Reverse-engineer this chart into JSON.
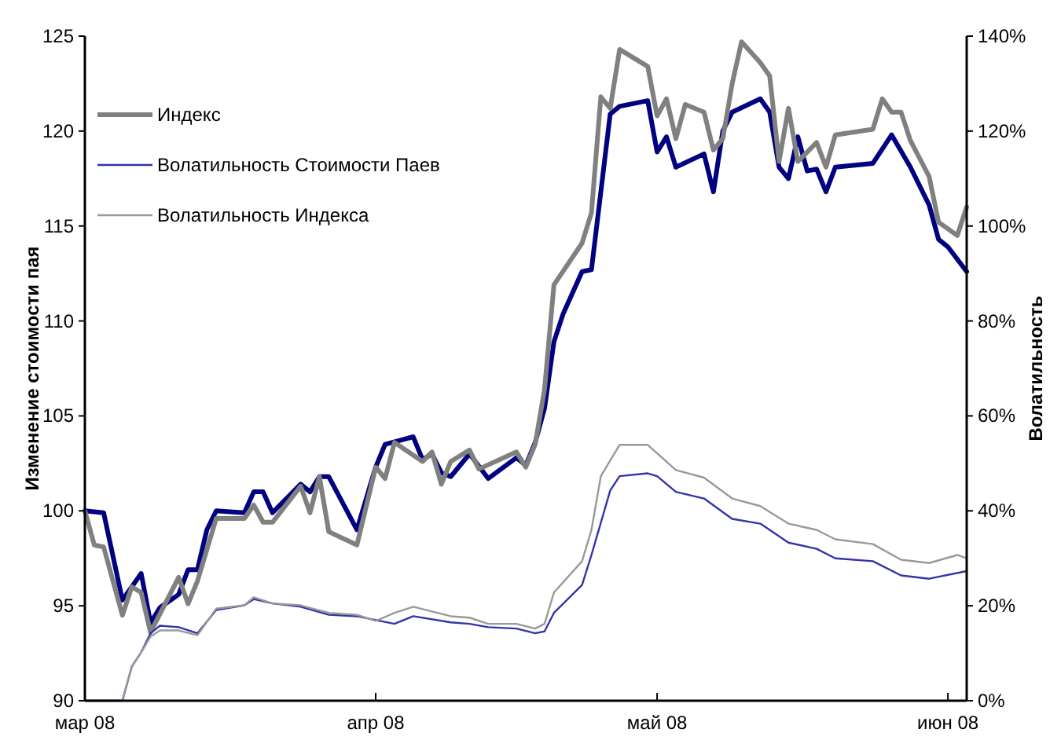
{
  "chart_data": {
    "type": "line",
    "ylabel": "Изменение стоимости пая",
    "y2label": "Волатильность",
    "xlim": [
      "2008-03-01",
      "2008-06-03"
    ],
    "xticks": [
      {
        "value": "2008-03-01",
        "label": "мар 08"
      },
      {
        "value": "2008-04-01",
        "label": "апр 08"
      },
      {
        "value": "2008-05-01",
        "label": "май 08"
      },
      {
        "value": "2008-06-01",
        "label": "июн 08"
      }
    ],
    "ylim": [
      90,
      125
    ],
    "yticks": [
      90,
      95,
      100,
      105,
      110,
      115,
      120,
      125
    ],
    "y2lim": [
      0,
      140
    ],
    "y2ticks": [
      {
        "value": 0,
        "label": "0%"
      },
      {
        "value": 20,
        "label": "20%"
      },
      {
        "value": 40,
        "label": "40%"
      },
      {
        "value": 60,
        "label": "60%"
      },
      {
        "value": 80,
        "label": "80%"
      },
      {
        "value": 100,
        "label": "100%"
      },
      {
        "value": 120,
        "label": "120%"
      },
      {
        "value": 140,
        "label": "140%"
      }
    ],
    "grid": false,
    "legend": "top left",
    "marker": "none",
    "line_style": "solid",
    "series": [
      {
        "color": "#000080",
        "x": [
          "2008-03-01",
          "2008-03-03",
          "2008-03-05",
          "2008-03-07",
          "2008-03-08",
          "2008-03-09",
          "2008-03-11",
          "2008-03-12",
          "2008-03-13",
          "2008-03-14",
          "2008-03-15",
          "2008-03-18",
          "2008-03-19",
          "2008-03-20",
          "2008-03-21",
          "2008-03-24",
          "2008-03-25",
          "2008-03-26",
          "2008-03-27",
          "2008-03-30",
          "2008-04-01",
          "2008-04-02",
          "2008-04-05",
          "2008-04-06",
          "2008-04-07",
          "2008-04-08",
          "2008-04-09",
          "2008-04-11",
          "2008-04-13",
          "2008-04-16",
          "2008-04-17",
          "2008-04-18",
          "2008-04-19",
          "2008-04-20",
          "2008-04-21",
          "2008-04-23",
          "2008-04-24",
          "2008-04-26",
          "2008-04-27",
          "2008-04-30",
          "2008-05-01",
          "2008-05-02",
          "2008-05-03",
          "2008-05-06",
          "2008-05-07",
          "2008-05-08",
          "2008-05-09",
          "2008-05-12",
          "2008-05-13",
          "2008-05-14",
          "2008-05-15",
          "2008-05-16",
          "2008-05-17",
          "2008-05-18",
          "2008-05-19",
          "2008-05-20",
          "2008-05-24",
          "2008-05-26",
          "2008-05-28",
          "2008-05-30",
          "2008-05-31",
          "2008-06-01",
          "2008-06-03"
        ],
        "values": [
          100.0,
          99.9,
          95.3,
          96.7,
          94.1,
          94.9,
          95.6,
          96.9,
          96.9,
          99.0,
          100.0,
          99.9,
          101.0,
          101.0,
          99.9,
          101.4,
          101.0,
          101.8,
          101.8,
          99.0,
          102.3,
          103.5,
          103.9,
          102.7,
          103.0,
          102.0,
          101.8,
          103.0,
          101.7,
          102.8,
          102.4,
          103.6,
          105.4,
          108.9,
          110.4,
          112.6,
          112.7,
          120.9,
          121.3,
          121.6,
          118.9,
          119.7,
          118.1,
          118.8,
          116.8,
          120.0,
          121.0,
          121.7,
          121.0,
          118.1,
          117.5,
          119.7,
          117.9,
          118.0,
          116.8,
          118.1,
          118.3,
          119.8,
          118.1,
          116.1,
          114.3,
          113.9,
          112.6
        ]
      },
      {
        "name": "Индекс",
        "color": "#808080",
        "x": [
          "2008-03-01",
          "2008-03-02",
          "2008-03-03",
          "2008-03-05",
          "2008-03-06",
          "2008-03-07",
          "2008-03-08",
          "2008-03-11",
          "2008-03-12",
          "2008-03-13",
          "2008-03-15",
          "2008-03-18",
          "2008-03-19",
          "2008-03-20",
          "2008-03-21",
          "2008-03-24",
          "2008-03-25",
          "2008-03-26",
          "2008-03-27",
          "2008-03-30",
          "2008-04-01",
          "2008-04-02",
          "2008-04-03",
          "2008-04-06",
          "2008-04-07",
          "2008-04-08",
          "2008-04-09",
          "2008-04-11",
          "2008-04-12",
          "2008-04-16",
          "2008-04-17",
          "2008-04-18",
          "2008-04-19",
          "2008-04-20",
          "2008-04-23",
          "2008-04-24",
          "2008-04-25",
          "2008-04-26",
          "2008-04-27",
          "2008-04-30",
          "2008-05-01",
          "2008-05-02",
          "2008-05-03",
          "2008-05-04",
          "2008-05-06",
          "2008-05-07",
          "2008-05-08",
          "2008-05-09",
          "2008-05-10",
          "2008-05-12",
          "2008-05-13",
          "2008-05-14",
          "2008-05-15",
          "2008-05-16",
          "2008-05-18",
          "2008-05-19",
          "2008-05-20",
          "2008-05-24",
          "2008-05-25",
          "2008-05-26",
          "2008-05-27",
          "2008-05-28",
          "2008-05-30",
          "2008-05-31",
          "2008-06-02",
          "2008-06-03"
        ],
        "values": [
          100.0,
          98.2,
          98.1,
          94.5,
          96.0,
          95.7,
          93.6,
          96.5,
          95.1,
          96.3,
          99.6,
          99.6,
          100.3,
          99.4,
          99.4,
          101.3,
          99.9,
          101.8,
          98.9,
          98.2,
          102.3,
          101.7,
          103.6,
          102.6,
          103.1,
          101.4,
          102.6,
          103.2,
          102.2,
          103.1,
          102.3,
          103.5,
          106.4,
          111.9,
          114.1,
          115.7,
          121.8,
          121.2,
          124.3,
          123.4,
          120.8,
          121.7,
          119.6,
          121.4,
          121.0,
          119.0,
          119.6,
          122.5,
          124.7,
          123.6,
          122.9,
          118.4,
          121.2,
          118.4,
          119.4,
          118.1,
          119.8,
          120.1,
          121.7,
          121.0,
          121.0,
          119.5,
          117.6,
          115.2,
          114.5,
          116.0
        ]
      },
      {
        "name": "Волатильность Стоимости Паев",
        "color": "#3333aa",
        "axis": "y2",
        "x": [
          "2008-03-01",
          "2008-03-05",
          "2008-03-06",
          "2008-03-07",
          "2008-03-08",
          "2008-03-09",
          "2008-03-11",
          "2008-03-13",
          "2008-03-15",
          "2008-03-18",
          "2008-03-19",
          "2008-03-21",
          "2008-03-24",
          "2008-03-27",
          "2008-03-30",
          "2008-04-03",
          "2008-04-05",
          "2008-04-09",
          "2008-04-11",
          "2008-04-13",
          "2008-04-16",
          "2008-04-18",
          "2008-04-19",
          "2008-04-20",
          "2008-04-23",
          "2008-04-24",
          "2008-04-26",
          "2008-04-27",
          "2008-04-30",
          "2008-05-01",
          "2008-05-03",
          "2008-05-06",
          "2008-05-09",
          "2008-05-12",
          "2008-05-15",
          "2008-05-18",
          "2008-05-20",
          "2008-05-24",
          "2008-05-27",
          "2008-05-30",
          "2008-06-03"
        ],
        "values": [
          0,
          0,
          7.2,
          10.2,
          14.2,
          15.8,
          15.5,
          14.2,
          19.1,
          20.1,
          21.4,
          20.5,
          19.8,
          18.1,
          17.8,
          16.2,
          17.8,
          16.5,
          16.2,
          15.5,
          15.2,
          14.2,
          14.6,
          18.5,
          24.4,
          30.7,
          44.3,
          47.3,
          47.9,
          47.3,
          44.0,
          42.6,
          38.3,
          37.3,
          33.3,
          32.0,
          30.0,
          29.4,
          26.4,
          25.7,
          27.3
        ]
      },
      {
        "name": "Волатильность Индекса",
        "color": "#999999",
        "axis": "y2",
        "x": [
          "2008-03-01",
          "2008-03-05",
          "2008-03-06",
          "2008-03-07",
          "2008-03-08",
          "2008-03-09",
          "2008-03-11",
          "2008-03-13",
          "2008-03-15",
          "2008-03-18",
          "2008-03-19",
          "2008-03-21",
          "2008-03-24",
          "2008-03-27",
          "2008-03-30",
          "2008-04-01",
          "2008-04-03",
          "2008-04-05",
          "2008-04-09",
          "2008-04-11",
          "2008-04-13",
          "2008-04-16",
          "2008-04-18",
          "2008-04-19",
          "2008-04-20",
          "2008-04-23",
          "2008-04-24",
          "2008-04-25",
          "2008-04-27",
          "2008-04-30",
          "2008-05-03",
          "2008-05-06",
          "2008-05-09",
          "2008-05-12",
          "2008-05-15",
          "2008-05-18",
          "2008-05-20",
          "2008-05-24",
          "2008-05-27",
          "2008-05-30",
          "2008-06-02",
          "2008-06-03"
        ],
        "values": [
          0,
          0,
          7.2,
          10.2,
          13.5,
          14.8,
          14.8,
          13.8,
          19.4,
          20.1,
          21.8,
          20.5,
          20.1,
          18.5,
          18.1,
          16.8,
          18.5,
          19.8,
          17.8,
          17.5,
          16.2,
          16.2,
          15.2,
          16.2,
          22.8,
          29.4,
          36.0,
          47.3,
          53.9,
          53.9,
          48.6,
          47.0,
          42.6,
          41.0,
          37.3,
          36.0,
          34.0,
          33.0,
          29.7,
          29.0,
          30.7,
          30.0
        ]
      }
    ]
  }
}
